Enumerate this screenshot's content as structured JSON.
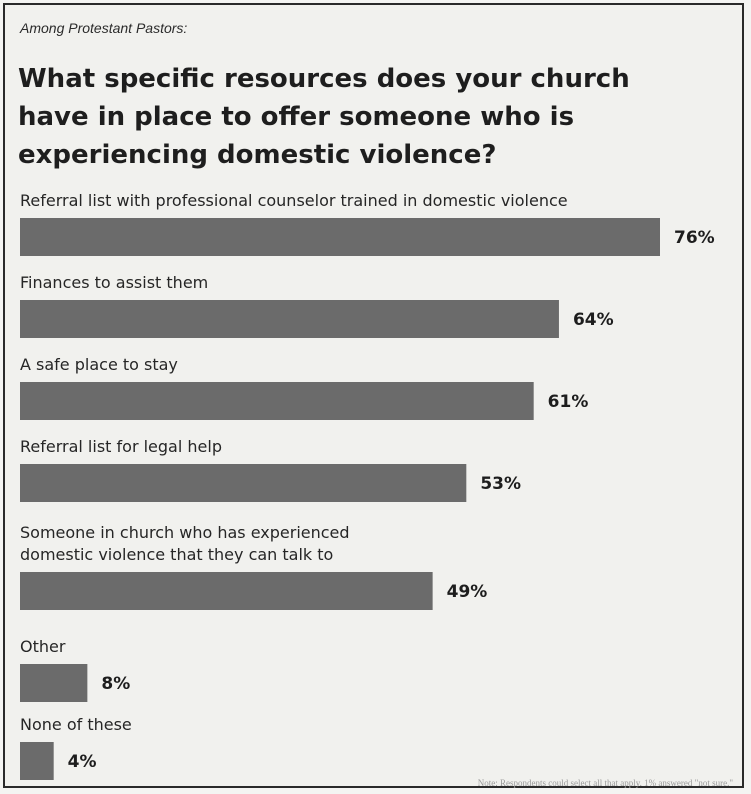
{
  "header": {
    "subtitle": "Among Protestant Pastors:",
    "title": "What specific resources does your church have in place to offer someone who is experiencing domestic violence?"
  },
  "footer": {
    "note": "Note: Respondents could select all that apply. 1% answered \"not sure.\""
  },
  "colors": {
    "bar": "#6b6b6b",
    "text": "#1d1d1d",
    "background": "#f1f1ee"
  },
  "chart_data": {
    "type": "bar",
    "orientation": "horizontal",
    "title": "What specific resources does your church have in place to offer someone who is experiencing domestic violence?",
    "subtitle": "Among Protestant Pastors:",
    "unit": "%",
    "categories": [
      [
        "Referral list with professional counselor trained in domestic violence"
      ],
      [
        "Finances to assist them"
      ],
      [
        "A safe place to stay"
      ],
      [
        "Referral list for legal help"
      ],
      [
        "Someone in church who has experienced",
        "domestic violence that they can talk to"
      ],
      [
        "Other"
      ],
      [
        "None of these"
      ]
    ],
    "values": [
      76,
      64,
      61,
      53,
      49,
      8,
      4
    ],
    "value_labels": [
      "76%",
      "64%",
      "61%",
      "53%",
      "49%",
      "8%",
      "4%"
    ],
    "xlim": [
      0,
      76
    ],
    "grid": false,
    "legend": "none"
  }
}
